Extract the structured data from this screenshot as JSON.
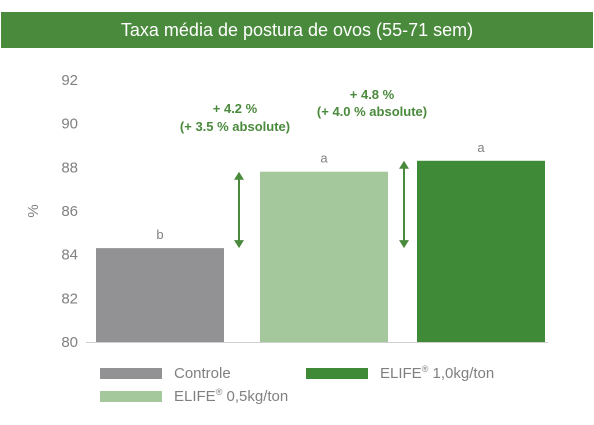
{
  "header": {
    "title": "Taxa média de postura de ovos (55-71 sem)"
  },
  "chart_data": {
    "type": "bar",
    "title": "Taxa média de postura de ovos (55-71 sem)",
    "ylabel": "%",
    "xlabel": "",
    "ylim": [
      80,
      92
    ],
    "yticks": [
      80,
      82,
      84,
      86,
      88,
      90,
      92
    ],
    "grid": false,
    "legend_placement": "bottom",
    "categories": [
      "Controle",
      "ELIFE® 0,5kg/ton",
      "ELIFE® 1,0kg/ton"
    ],
    "values": [
      84.3,
      87.8,
      88.3
    ],
    "data_labels": [
      "b",
      "a",
      "a"
    ],
    "colors": [
      "#929295",
      "#a5c79c",
      "#3f8a36"
    ],
    "annotations": [
      {
        "line1": "+ 4.2 %",
        "line2": "(+ 3.5 % absolute)",
        "from": 84.3,
        "to": 87.8
      },
      {
        "line1": "+ 4.8 %",
        "line2": "(+ 4.0 % absolute)",
        "from": 84.3,
        "to": 88.3
      }
    ],
    "annotation_color": "#4a8a3c"
  },
  "legend": {
    "items": [
      {
        "prefix": "Controle",
        "sup": "",
        "suffix": "",
        "color": "#929295"
      },
      {
        "prefix": "ELIFE",
        "sup": "®",
        "suffix": " 1,0kg/ton",
        "color": "#3f8a36"
      },
      {
        "prefix": "ELIFE",
        "sup": "®",
        "suffix": " 0,5kg/ton",
        "color": "#a5c79c"
      }
    ]
  }
}
